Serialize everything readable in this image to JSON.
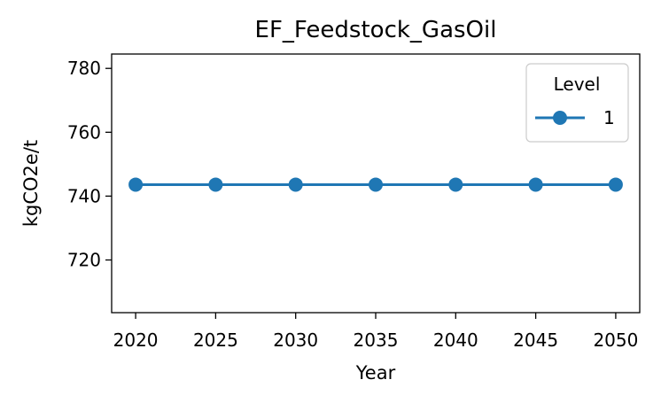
{
  "chart_data": {
    "type": "line",
    "title": "EF_Feedstock_GasOil",
    "xlabel": "Year",
    "ylabel": "kgCO2e/t",
    "x": [
      2020,
      2025,
      2030,
      2035,
      2040,
      2045,
      2050
    ],
    "x_ticks": [
      "2020",
      "2025",
      "2030",
      "2035",
      "2040",
      "2045",
      "2050"
    ],
    "y_ticks": [
      "720",
      "740",
      "760",
      "780"
    ],
    "xlim": [
      2018.5,
      2051.5
    ],
    "ylim": [
      703.5,
      784.5
    ],
    "series": [
      {
        "name": "1",
        "values": [
          743.6,
          743.6,
          743.6,
          743.6,
          743.6,
          743.6,
          743.6
        ],
        "color": "#1f77b4",
        "marker": "circle"
      }
    ],
    "legend": {
      "title": "Level",
      "position": "top-right"
    },
    "grid": false
  }
}
